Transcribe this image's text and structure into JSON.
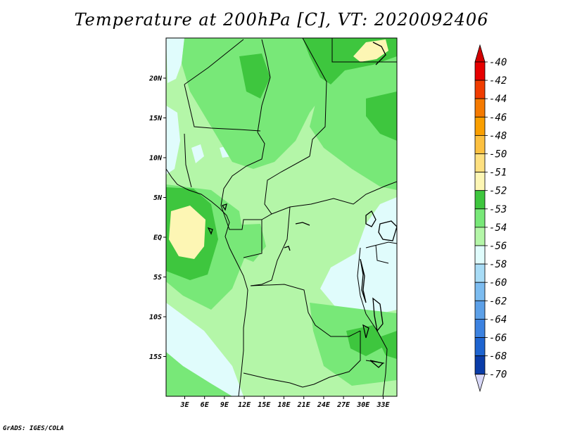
{
  "title": "Temperature at 200hPa [C], VT: 2020092406",
  "footer": "GrADS: IGES/COLA",
  "map": {
    "lat_labels": [
      {
        "text": "20N",
        "lat": 20
      },
      {
        "text": "15N",
        "lat": 15
      },
      {
        "text": "10N",
        "lat": 10
      },
      {
        "text": "5N",
        "lat": 5
      },
      {
        "text": "EQ",
        "lat": 0
      },
      {
        "text": "5S",
        "lat": -5
      },
      {
        "text": "10S",
        "lat": -10
      },
      {
        "text": "15S",
        "lat": -15
      }
    ],
    "lon_labels": [
      {
        "text": "3E",
        "lon": 3
      },
      {
        "text": "6E",
        "lon": 6
      },
      {
        "text": "9E",
        "lon": 9
      },
      {
        "text": "12E",
        "lon": 12
      },
      {
        "text": "15E",
        "lon": 15
      },
      {
        "text": "18E",
        "lon": 18
      },
      {
        "text": "21E",
        "lon": 21
      },
      {
        "text": "24E",
        "lon": 24
      },
      {
        "text": "27E",
        "lon": 27
      },
      {
        "text": "30E",
        "lon": 30
      },
      {
        "text": "33E",
        "lon": 33
      }
    ]
  },
  "colorbar": {
    "levels": [
      {
        "label": "-40",
        "color": "#e60000"
      },
      {
        "label": "-42",
        "color": "#f03c00"
      },
      {
        "label": "-44",
        "color": "#f57a00"
      },
      {
        "label": "-46",
        "color": "#fa9f00"
      },
      {
        "label": "-48",
        "color": "#fcc040"
      },
      {
        "label": "-50",
        "color": "#fee080"
      },
      {
        "label": "-51",
        "color": "#fdf6b4"
      },
      {
        "label": "-52",
        "color": "#3ec63e"
      },
      {
        "label": "-53",
        "color": "#78e878"
      },
      {
        "label": "-54",
        "color": "#b4f6a8"
      },
      {
        "label": "-56",
        "color": "#e0fcfc"
      },
      {
        "label": "-58",
        "color": "#a8dcf6"
      },
      {
        "label": "-60",
        "color": "#7cbcf0"
      },
      {
        "label": "-62",
        "color": "#5ca0e8"
      },
      {
        "label": "-64",
        "color": "#3c82e0"
      },
      {
        "label": "-66",
        "color": "#1e64d0"
      },
      {
        "label": "-68",
        "color": "#0a3ca8"
      },
      {
        "label": "-70",
        "color": "#041a7a"
      }
    ],
    "top_color": "#d20000",
    "bottom_color": "#d8d8f8"
  }
}
